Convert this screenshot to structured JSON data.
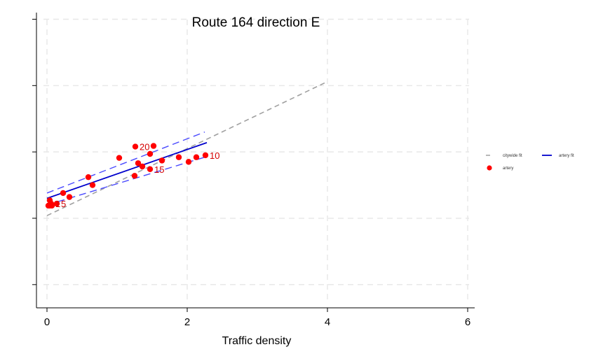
{
  "chart_data": {
    "type": "scatter",
    "title": "Route 164 direction E",
    "xlabel": "Traffic density",
    "ylabel": "",
    "xlim": [
      -0.15,
      6.1
    ],
    "ylim": [
      -0.35,
      4.1
    ],
    "xticks": [
      0,
      2,
      4,
      6
    ],
    "yticks": [
      0,
      1,
      2,
      3,
      4
    ],
    "show_ytick_labels": false,
    "grid": true,
    "legend_position": "right",
    "colors": {
      "citywide_fit": "#a0a0a0",
      "artery_fit": "#0000cc",
      "artery_ci": "#4a4aff",
      "artery_points": "#ff0000",
      "point_labels": "#d40000",
      "grid": "#e8e8e8"
    },
    "series": [
      {
        "name": "citywide fit",
        "kind": "line",
        "style": "dashed",
        "x": [
          0,
          4
        ],
        "y": [
          1.04,
          3.06
        ]
      },
      {
        "name": "artery fit",
        "kind": "line",
        "style": "solid",
        "x": [
          0,
          2.28
        ],
        "y": [
          1.3,
          2.14
        ]
      },
      {
        "name": "",
        "kind": "ci_upper",
        "style": "dashed",
        "x": [
          0,
          2.25
        ],
        "y": [
          1.38,
          2.3
        ]
      },
      {
        "name": "",
        "kind": "ci_lower",
        "style": "dashed",
        "x": [
          0,
          2.25
        ],
        "y": [
          1.2,
          1.92
        ]
      },
      {
        "name": "artery",
        "kind": "points",
        "points": [
          {
            "x": 0.02,
            "y": 1.19,
            "label": ""
          },
          {
            "x": 0.04,
            "y": 1.19,
            "label": ""
          },
          {
            "x": 0.07,
            "y": 1.19,
            "label": ""
          },
          {
            "x": 0.04,
            "y": 1.27,
            "label": ""
          },
          {
            "x": 0.06,
            "y": 1.22,
            "label": "1"
          },
          {
            "x": 0.14,
            "y": 1.22,
            "label": "5"
          },
          {
            "x": 0.23,
            "y": 1.38,
            "label": ""
          },
          {
            "x": 0.32,
            "y": 1.32,
            "label": ""
          },
          {
            "x": 0.59,
            "y": 1.62,
            "label": ""
          },
          {
            "x": 0.65,
            "y": 1.5,
            "label": ""
          },
          {
            "x": 1.03,
            "y": 1.91,
            "label": ""
          },
          {
            "x": 1.25,
            "y": 1.64,
            "label": ""
          },
          {
            "x": 1.26,
            "y": 2.08,
            "label": "20"
          },
          {
            "x": 1.3,
            "y": 1.83,
            "label": ""
          },
          {
            "x": 1.36,
            "y": 1.78,
            "label": ""
          },
          {
            "x": 1.47,
            "y": 1.74,
            "label": "15"
          },
          {
            "x": 1.47,
            "y": 1.97,
            "label": ""
          },
          {
            "x": 1.52,
            "y": 2.09,
            "label": ""
          },
          {
            "x": 1.64,
            "y": 1.87,
            "label": ""
          },
          {
            "x": 1.88,
            "y": 1.92,
            "label": ""
          },
          {
            "x": 2.02,
            "y": 1.85,
            "label": ""
          },
          {
            "x": 2.13,
            "y": 1.92,
            "label": ""
          },
          {
            "x": 2.26,
            "y": 1.95,
            "label": "10"
          }
        ]
      }
    ],
    "legend": [
      {
        "label": "citywide fit",
        "marker": "dash",
        "color": "#a0a0a0"
      },
      {
        "label": "artery fit",
        "marker": "line",
        "color": "#0000cc"
      },
      {
        "label": "artery",
        "marker": "dot",
        "color": "#ff0000"
      }
    ]
  }
}
